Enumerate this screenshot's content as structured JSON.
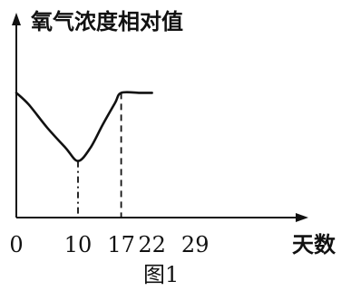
{
  "chart_data": {
    "type": "line",
    "ylabel": "氧气浓度相对值",
    "xlabel": "天数",
    "caption": "图1",
    "x_ticks": [
      0,
      10,
      17,
      22,
      29
    ],
    "x_tick_labels": [
      "0",
      "10",
      "17",
      "22",
      "29"
    ],
    "xlim": [
      0,
      29
    ],
    "ylim": [
      0,
      1
    ],
    "y_ticks": [],
    "grid": false,
    "series": [
      {
        "x": [
          0,
          2,
          5,
          8,
          10,
          12,
          14,
          16,
          17,
          20,
          22
        ],
        "y": [
          0.86,
          0.78,
          0.62,
          0.48,
          0.39,
          0.48,
          0.64,
          0.79,
          0.86,
          0.86,
          0.86
        ]
      }
    ],
    "reference_lines": [
      {
        "x": 10,
        "y": 0.39,
        "style": "dash-dot"
      },
      {
        "x": 17,
        "y": 0.86,
        "style": "dashed"
      }
    ]
  }
}
